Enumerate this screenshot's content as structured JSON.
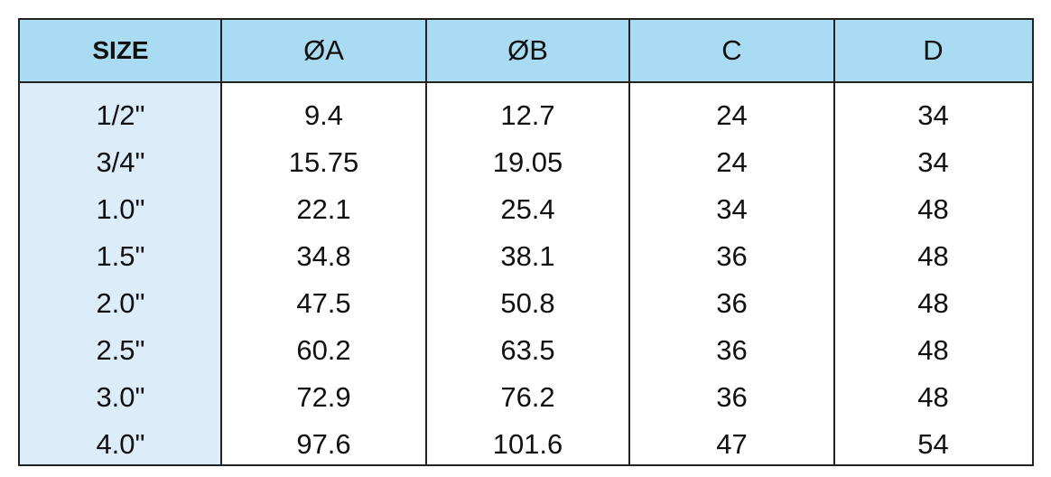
{
  "table": {
    "header": [
      "SIZE",
      "ØA",
      "ØB",
      "C",
      "D"
    ],
    "rows": [
      [
        "1/2\"",
        "9.4",
        "12.7",
        "24",
        "34"
      ],
      [
        "3/4\"",
        "15.75",
        "19.05",
        "24",
        "34"
      ],
      [
        "1.0\"",
        "22.1",
        "25.4",
        "34",
        "48"
      ],
      [
        "1.5\"",
        "34.8",
        "38.1",
        "36",
        "48"
      ],
      [
        "2.0\"",
        "47.5",
        "50.8",
        "36",
        "48"
      ],
      [
        "2.5\"",
        "60.2",
        "63.5",
        "36",
        "48"
      ],
      [
        "3.0\"",
        "72.9",
        "76.2",
        "36",
        "48"
      ],
      [
        "4.0\"",
        "97.6",
        "101.6",
        "47",
        "54"
      ]
    ]
  }
}
